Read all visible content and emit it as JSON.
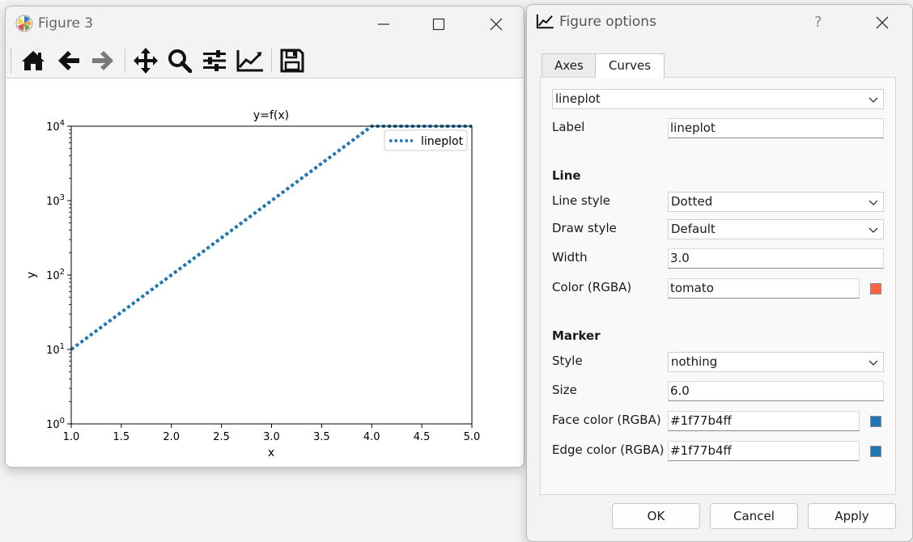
{
  "figure_window": {
    "title": "Figure 3",
    "toolbar_tools": [
      "home-icon",
      "back-arrow-icon",
      "forward-arrow-icon",
      "pan-icon",
      "zoom-icon",
      "subplots-icon",
      "edit-curves-icon",
      "save-icon"
    ]
  },
  "chart_data": {
    "type": "line",
    "title": "y=f(x)",
    "xlabel": "x",
    "ylabel": "y",
    "xlim": [
      1.0,
      5.0
    ],
    "ylim": [
      1,
      10000
    ],
    "yscale": "log",
    "xticks": [
      "1.0",
      "1.5",
      "2.0",
      "2.5",
      "3.0",
      "3.5",
      "4.0",
      "4.5",
      "5.0"
    ],
    "yticks": [
      {
        "base": "10",
        "exp": "0",
        "value": 1
      },
      {
        "base": "10",
        "exp": "1",
        "value": 10
      },
      {
        "base": "10",
        "exp": "2",
        "value": 100
      },
      {
        "base": "10",
        "exp": "3",
        "value": 1000
      },
      {
        "base": "10",
        "exp": "4",
        "value": 10000
      }
    ],
    "series": [
      {
        "name": "lineplot",
        "x": [
          1.0,
          2.0,
          3.0,
          4.0,
          4.5,
          5.0
        ],
        "y": [
          10,
          100,
          1000,
          10000,
          10000,
          10000
        ],
        "color": "#1f77b4",
        "linestyle": "dotted"
      }
    ],
    "legend": "top-right",
    "grid": false
  },
  "dialog": {
    "title": "Figure options",
    "help_label": "?",
    "tabs": [
      "Axes",
      "Curves"
    ],
    "active_tab": "Curves",
    "curve_select": "lineplot",
    "label_label": "Label",
    "label_value": "lineplot",
    "line_header": "Line",
    "line_style_label": "Line style",
    "line_style_value": "Dotted",
    "draw_style_label": "Draw style",
    "draw_style_value": "Default",
    "width_label": "Width",
    "width_value": "3.0",
    "line_color_label": "Color (RGBA)",
    "line_color_value": "tomato",
    "line_color_swatch": "#ff6347",
    "marker_header": "Marker",
    "marker_style_label": "Style",
    "marker_style_value": "nothing",
    "marker_size_label": "Size",
    "marker_size_value": "6.0",
    "face_color_label": "Face color (RGBA)",
    "face_color_value": "#1f77b4ff",
    "face_color_swatch": "#1f77b4",
    "edge_color_label": "Edge color (RGBA)",
    "edge_color_value": "#1f77b4ff",
    "edge_color_swatch": "#1f77b4",
    "ok_label": "OK",
    "cancel_label": "Cancel",
    "apply_label": "Apply"
  }
}
